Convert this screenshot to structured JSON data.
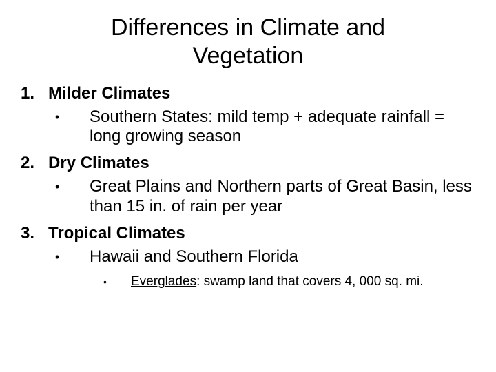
{
  "title": "Differences in Climate and Vegetation",
  "items": [
    {
      "num": "1.",
      "label": "Milder Climates",
      "sub": [
        {
          "bullet": "•",
          "text": "Southern States:  mild temp + adequate rainfall = long growing season"
        }
      ]
    },
    {
      "num": "2.",
      "label": "Dry Climates",
      "sub": [
        {
          "bullet": "•",
          "text": "Great Plains and Northern parts of Great Basin, less than 15 in. of rain per year"
        }
      ]
    },
    {
      "num": "3.",
      "label": "Tropical Climates",
      "sub": [
        {
          "bullet": "•",
          "text": "Hawaii and Southern Florida",
          "sub": [
            {
              "bullet": "•",
              "underlined": "Everglades",
              "rest": ":  swamp land that covers 4, 000 sq. mi."
            }
          ]
        }
      ]
    }
  ],
  "style": {
    "background_color": "#ffffff",
    "text_color": "#000000",
    "title_fontsize": 34,
    "level1_fontsize": 24,
    "level2_fontsize": 24,
    "level3_fontsize": 19,
    "font_family": "Arial"
  }
}
